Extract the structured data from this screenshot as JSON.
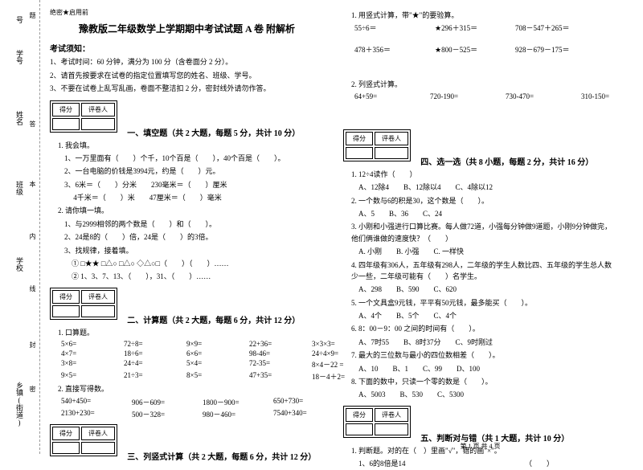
{
  "binding": {
    "labels": [
      "号",
      "学号",
      "姓名",
      "班级",
      "学校",
      "乡镇(街道)"
    ],
    "markers": [
      "题",
      "答",
      "本",
      "内",
      "线",
      "封",
      "密"
    ]
  },
  "header": {
    "secret": "绝密★启用前",
    "title": "豫教版二年级数学上学期期中考试试题 A 卷 附解析",
    "notice_label": "考试须知：",
    "notices": [
      "1、考试时间：60 分钟，满分为 100 分（含卷面分 2 分）。",
      "2、请首先按要求在试卷的指定位置填写您的姓名、班级、学号。",
      "3、不要在试卷上乱写乱画，卷面不整洁扣 2 分，密封线外请勿作答。"
    ]
  },
  "score_table": {
    "c1": "得分",
    "c2": "评卷人"
  },
  "sections": {
    "s1": {
      "title": "一、填空题（共 2 大题，每题 5 分，共计 10 分）",
      "q1_head": "1. 我会填。",
      "q1_lines": [
        "1、一万里面有（　　）个千，10个百是（　　），40个百是（　　）。",
        "2、一台电脑的价钱是3994元，约是（　　）元。",
        "3、6米＝（　　）分米　　230毫米＝（　　）厘米",
        "　 4千米＝（　　）米　　47厘米＝（　　）毫米"
      ],
      "q2_head": "2. 请你填一填。",
      "q2_lines": [
        "1、与2999相邻的两个数是（　　）和（　　）。",
        "2、24是8的（　　）倍，24是（　　）的3倍。",
        "3、找规律，接着填。",
        "　① □★★ □△○ □△○ ◇△○□（　　）（　　）……",
        "　② 1、3、7、13、（　　），31、（　　）……"
      ]
    },
    "s2": {
      "title": "二、计算题（共 2 大题，每题 6 分，共计 12 分）",
      "q1_head": "1. 口算题。",
      "rows1": [
        [
          "5×6=",
          "72÷8=",
          "9×9=",
          "22+36=",
          "3×3×3="
        ],
        [
          "4×7=",
          "18÷6=",
          "6×6=",
          "98-46=",
          "24÷4×9="
        ],
        [
          "3×8=",
          "24÷4=",
          "5×4=",
          "72-35=",
          "8×4－22 ="
        ],
        [
          "9×5=",
          "21÷3=",
          "8×5=",
          "47+35=",
          "18－4＋2="
        ]
      ],
      "q2_head": "2. 直接写得数。",
      "rows2": [
        [
          "540+450=",
          "906－609=",
          "1800－900=",
          "650+730="
        ],
        [
          "2130+230=",
          "500－328=",
          "980－460=",
          "7540+340="
        ]
      ]
    },
    "s3": {
      "title": "三、列竖式计算（共 2 大题，每题 6 分，共计 12 分）",
      "q1_head": "1. 用竖式计算，带\"★\"的要验算。",
      "rows1": [
        [
          "55÷6＝",
          "★296＋315＝",
          "708－547＋265＝"
        ],
        [
          "478＋356＝",
          "★800－525＝",
          "928－679－175＝"
        ]
      ],
      "q2_head": "2. 列竖式计算。",
      "rows2": [
        [
          "64+59=",
          "720-190=",
          "730-470=",
          "310-150="
        ]
      ]
    },
    "s4": {
      "title": "四、选一选（共 8 小题，每题 2 分，共计 16 分）",
      "items": [
        {
          "stem": "1. 12÷4读作（　　）",
          "opts": "　A、12除4　　B、12除以4　　C、4除以12"
        },
        {
          "stem": "2. 一个数与6的积是30，这个数是（　　）。",
          "opts": "　A、5　　B、36　　C、24"
        },
        {
          "stem": "3. 小刚和小强进行口算比赛。每人做72道，小强每分钟做9道题，小刚9分钟做完，他们俩谁做的速度快？（　　）",
          "opts": "　A. 小刚　　B. 小强　　C. 一样快"
        },
        {
          "stem": "4. 四年级有306人，五年级有298人，二年级的学生人数比四、五年级的学生总人数少一些，二年级可能有（　　）名学生。",
          "opts": "　A、298　　B、590　　C、620"
        },
        {
          "stem": "5. 一个文具盒9元钱，平平有50元钱，最多能买（　　）。",
          "opts": "　A、4个　　B、5个　　C、4个"
        },
        {
          "stem": "6. 8：00－9：00 之间的时间有（　　）。",
          "opts": "　A、7时55　　B、8时37分　　C、9时刚过"
        },
        {
          "stem": "7. 最大的三位数与最小的四位数相差（　　）。",
          "opts": "　A、10　　B、1　　C、99　　D、100"
        },
        {
          "stem": "8. 下面的数中，只读一个零的数是（　　）。",
          "opts": "　A、5003　　B、530　　C、5300"
        }
      ]
    },
    "s5": {
      "title": "五、判断对与错（共 1 大题，共计 10 分）",
      "q1_head": "1. 判断题。对的在（　）里画\"√\"，错的画\"×\"。",
      "line1": "　1、6的8倍是14　　　　　　　　　　　　　　　　　（　　）"
    }
  },
  "footer": "第 1 页 共 4 页"
}
